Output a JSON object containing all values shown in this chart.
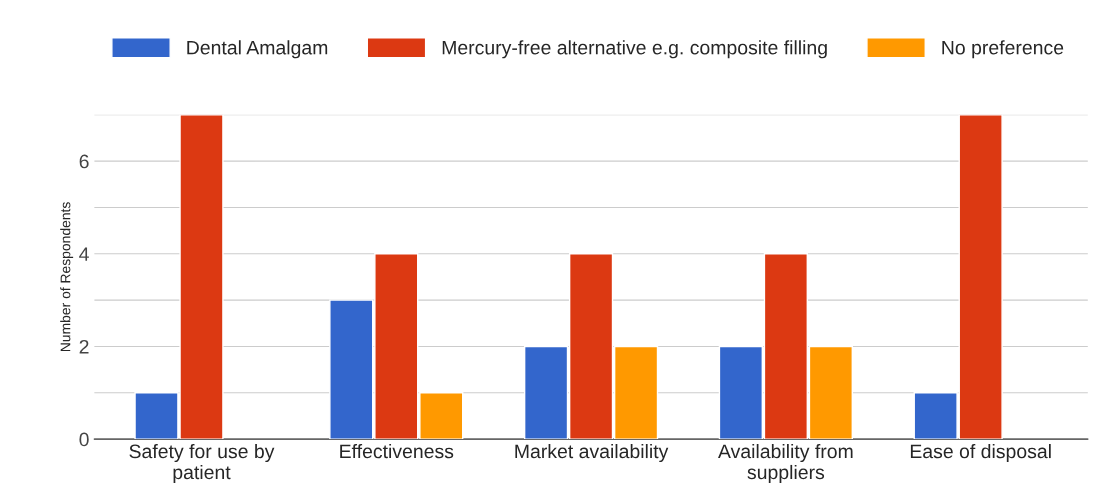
{
  "chart_data": {
    "type": "bar",
    "ylabel": "Number of Respondents",
    "categories": [
      "Safety for use by\npatient",
      "Effectiveness",
      "Market availability",
      "Availability from\nsuppliers",
      "Ease of disposal"
    ],
    "series": [
      {
        "name": "Dental Amalgam",
        "color": "#3366cc",
        "values": [
          1,
          3,
          2,
          2,
          1
        ]
      },
      {
        "name": "Mercury-free alternative e.g. composite filling",
        "color": "#dc3912",
        "values": [
          7,
          4,
          4,
          4,
          7
        ]
      },
      {
        "name": "No preference",
        "color": "#ff9900",
        "values": [
          null,
          1,
          2,
          2,
          null
        ]
      }
    ],
    "ylim": [
      0,
      7
    ],
    "yticks": [
      0,
      {
        "value": 1,
        "label": null
      },
      2,
      {
        "value": 3,
        "label": null
      },
      4,
      {
        "value": 5,
        "label": null
      },
      6,
      {
        "value": 7,
        "label": null
      }
    ],
    "grid": "y",
    "legend": "top left"
  }
}
